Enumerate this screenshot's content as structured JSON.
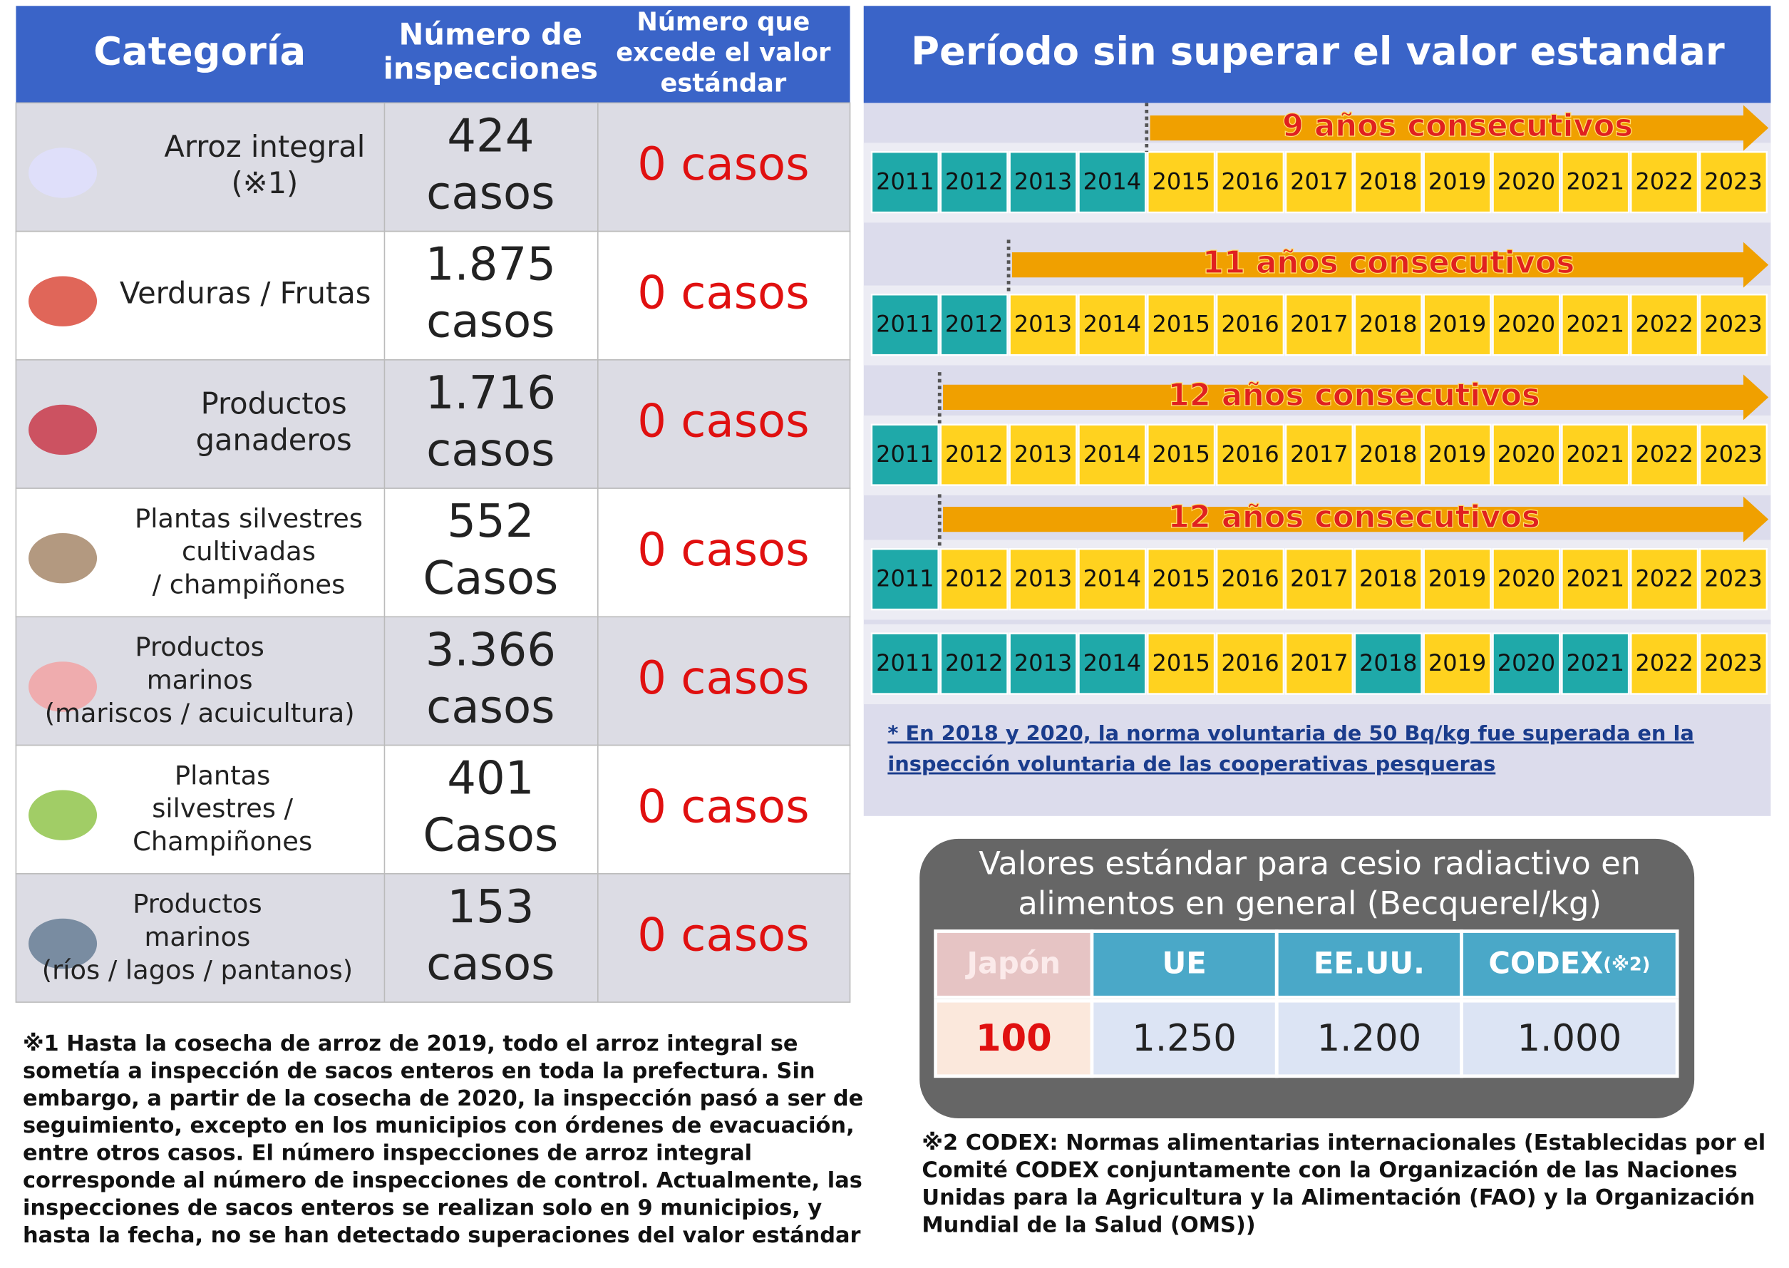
{
  "table": {
    "headers": [
      [
        "Categoría"
      ],
      [
        "Número de",
        "inspecciones"
      ],
      [
        "Número que",
        "excede el valor",
        "estándar"
      ]
    ],
    "rows": [
      {
        "category": [
          "Arroz integral",
          "(※1)"
        ],
        "inspections": [
          "424",
          "casos"
        ],
        "exceeded": "0 casos"
      },
      {
        "category": [
          "Verduras / Frutas"
        ],
        "inspections": [
          "1.875",
          "casos"
        ],
        "exceeded": "0 casos"
      },
      {
        "category": [
          "Productos",
          "ganaderos"
        ],
        "inspections": [
          "1.716",
          "casos"
        ],
        "exceeded": "0 casos"
      },
      {
        "category": [
          "Plantas silvestres",
          "cultivadas",
          "/ champiñones"
        ],
        "inspections": [
          "552",
          "Casos"
        ],
        "exceeded": "0 casos"
      },
      {
        "category": [
          "Productos",
          "marinos",
          "(mariscos / acuicultura)"
        ],
        "inspections": [
          "3.366",
          "casos"
        ],
        "exceeded": "0 casos"
      },
      {
        "category": [
          "Plantas",
          "silvestres /",
          "Champiñones"
        ],
        "inspections": [
          "401",
          "Casos"
        ],
        "exceeded": "0 casos"
      },
      {
        "category": [
          "Productos",
          "marinos",
          "(ríos / lagos /  pantanos)"
        ],
        "inspections": [
          "153",
          "casos"
        ],
        "exceeded": "0 casos"
      }
    ]
  },
  "period": {
    "title": "Período sin superar el valor estandar",
    "years": [
      "2011",
      "2012",
      "2013",
      "2014",
      "2015",
      "2016",
      "2017",
      "2018",
      "2019",
      "2020",
      "2021",
      "2022",
      "2023"
    ],
    "rows": [
      {
        "label": "9 años consecutivos",
        "colors": [
          "#1fa9a9",
          "#1fa9a9",
          "#1fa9a9",
          "#1fa9a9",
          "#ffd21f",
          "#ffd21f",
          "#ffd21f",
          "#ffd21f",
          "#ffd21f",
          "#ffd21f",
          "#ffd21f",
          "#ffd21f",
          "#ffd21f"
        ]
      },
      {
        "label": "11 años consecutivos",
        "colors": [
          "#1fa9a9",
          "#1fa9a9",
          "#ffd21f",
          "#ffd21f",
          "#ffd21f",
          "#ffd21f",
          "#ffd21f",
          "#ffd21f",
          "#ffd21f",
          "#ffd21f",
          "#ffd21f",
          "#ffd21f",
          "#ffd21f"
        ]
      },
      {
        "label": "12 años consecutivos",
        "colors": [
          "#1fa9a9",
          "#ffd21f",
          "#ffd21f",
          "#ffd21f",
          "#ffd21f",
          "#ffd21f",
          "#ffd21f",
          "#ffd21f",
          "#ffd21f",
          "#ffd21f",
          "#ffd21f",
          "#ffd21f",
          "#ffd21f"
        ]
      },
      {
        "label": "12 años consecutivos",
        "colors": [
          "#1fa9a9",
          "#ffd21f",
          "#ffd21f",
          "#ffd21f",
          "#ffd21f",
          "#ffd21f",
          "#ffd21f",
          "#ffd21f",
          "#ffd21f",
          "#ffd21f",
          "#ffd21f",
          "#ffd21f",
          "#ffd21f"
        ]
      },
      {
        "colors": [
          "#1fa9a9",
          "#1fa9a9",
          "#1fa9a9",
          "#1fa9a9",
          "#ffd21f",
          "#ffd21f",
          "#ffd21f",
          "#1fa9a9",
          "#ffd21f",
          "#1fa9a9",
          "#1fa9a9",
          "#ffd21f",
          "#ffd21f"
        ]
      }
    ],
    "note": [
      "* En 2018 y 2020, la norma voluntaria de 50 Bq/kg fue superada en la",
      "inspección voluntaria de las cooperativas pesqueras"
    ]
  },
  "standards": {
    "title": [
      "Valores estándar para cesio radiactivo en",
      "alimentos en general (Becquerel/kg)"
    ],
    "headers": [
      "Japón",
      "UE",
      "EE.UU.",
      "CODEX"
    ],
    "codex_mark": "(※2)",
    "values": [
      "100",
      "1.250",
      "1.200",
      "1.000"
    ]
  },
  "footnotes": {
    "rice": [
      "※1 Hasta la cosecha de arroz de 2019, todo el arroz integral se",
      "sometía a inspección de sacos enteros en toda la prefectura. Sin",
      "embargo, a partir de la cosecha de 2020, la inspección pasó a ser de",
      "seguimiento, excepto en los municipios con órdenes de evacuación,",
      "entre otros casos. El número inspecciones de arroz integral",
      "corresponde al número de inspecciones de control. Actualmente, las",
      "inspecciones de sacos enteros se realizan solo en 9 municipios, y",
      "hasta la fecha, no se han detectado  superaciones del valor estándar"
    ],
    "codex": [
      "※2 CODEX: Normas alimentarias internacionales (Establecidas por el",
      "Comité CODEX conjuntamente con la Organización de las Naciones",
      "Unidas para la Agricultura y la Alimentación (FAO) y la Organización",
      "Mundial de la Salud (OMS))"
    ]
  }
}
